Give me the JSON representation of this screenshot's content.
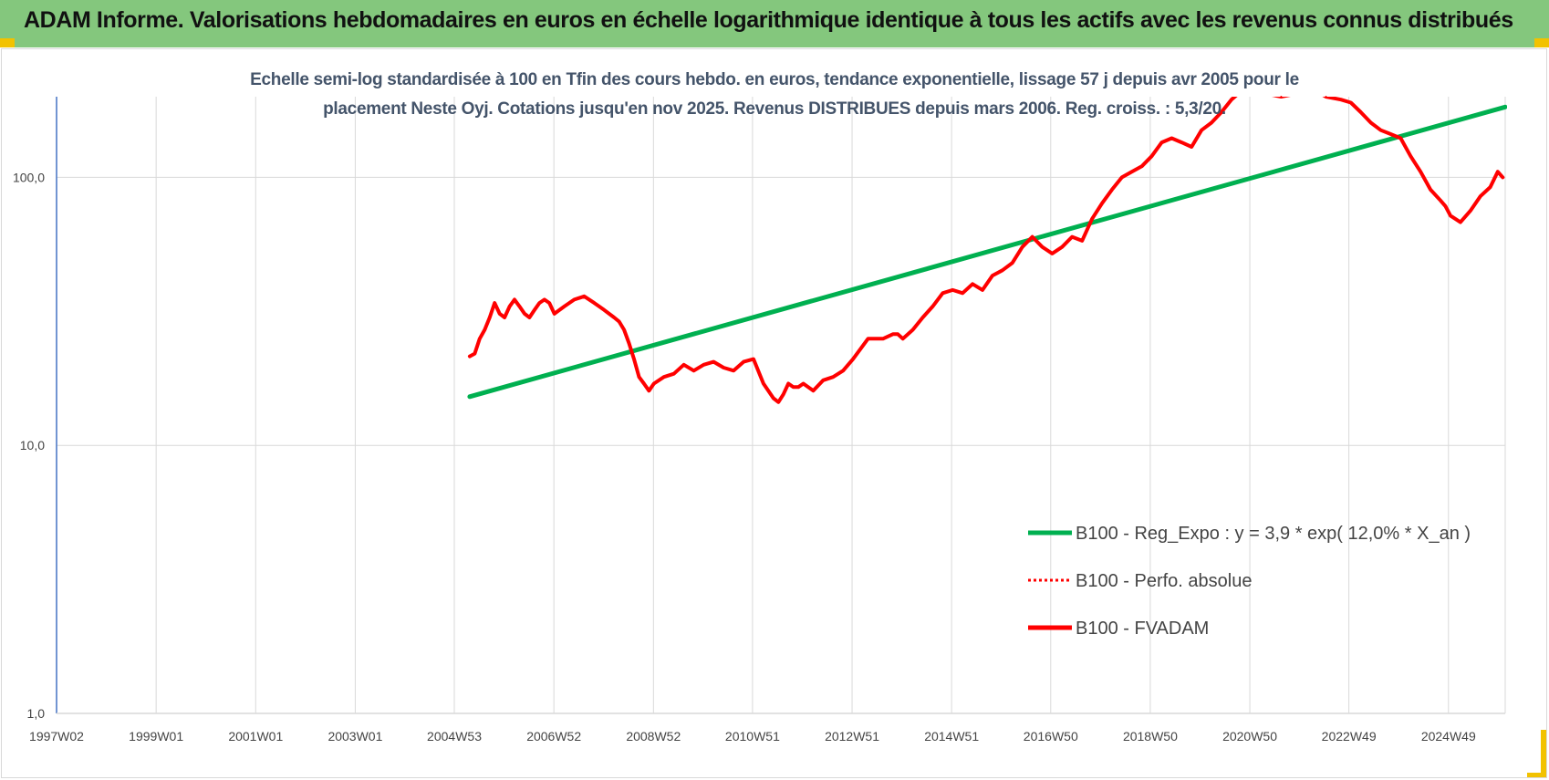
{
  "banner": {
    "title": "ADAM Informe. Valorisations hebdomadaires en euros en échelle logarithmique identique à tous les actifs avec les revenus connus distribués"
  },
  "colors": {
    "banner": "#84c77d",
    "trend": "#00b050",
    "series": "#ff0000",
    "grid": "#d9d9d9",
    "axis": "#4472c4",
    "corner": "#f2c200"
  },
  "chart_data": {
    "type": "line",
    "title_lines": [
      "Echelle semi-log standardisée à 100 en Tfin des cours hebdo. en euros, tendance exponentielle, lissage 57 j depuis avr 2005 pour le",
      "placement Neste Oyj. Cotations jusqu'en nov 2025. Revenus DISTRIBUES depuis mars 2006. Reg. croiss. : 5,3/20."
    ],
    "y_scale": "log",
    "ylim": [
      1,
      200
    ],
    "y_ticks": [
      {
        "value": 1,
        "label": "1,0"
      },
      {
        "value": 10,
        "label": "10,0"
      },
      {
        "value": 100,
        "label": "100,0"
      }
    ],
    "xlim": [
      1997.0,
      2026.1
    ],
    "x_ticks": [
      {
        "x": 1997.0,
        "label": "1997W02"
      },
      {
        "x": 1999.0,
        "label": "1999W01"
      },
      {
        "x": 2001.0,
        "label": "2001W01"
      },
      {
        "x": 2003.0,
        "label": "2003W01"
      },
      {
        "x": 2004.99,
        "label": "2004W53"
      },
      {
        "x": 2006.99,
        "label": "2006W52"
      },
      {
        "x": 2008.99,
        "label": "2008W52"
      },
      {
        "x": 2010.98,
        "label": "2010W51"
      },
      {
        "x": 2012.98,
        "label": "2012W51"
      },
      {
        "x": 2014.98,
        "label": "2014W51"
      },
      {
        "x": 2016.97,
        "label": "2016W50"
      },
      {
        "x": 2018.97,
        "label": "2018W50"
      },
      {
        "x": 2020.97,
        "label": "2020W50"
      },
      {
        "x": 2022.96,
        "label": "2022W49"
      },
      {
        "x": 2024.96,
        "label": "2024W49"
      }
    ],
    "legend_position": "bottom-right",
    "legend": [
      {
        "key": "trend",
        "label": "B100 - Reg_Expo : y = 3,9 * exp( 12,0% *  X_an )",
        "style": "solid"
      },
      {
        "key": "perfo",
        "label": "B100 - Perfo. absolue",
        "style": "dotted"
      },
      {
        "key": "fvadam",
        "label": "B100 - FVADAM",
        "style": "solid"
      }
    ],
    "series": [
      {
        "key": "trend",
        "type": "line",
        "x": [
          2005.3,
          2026.1
        ],
        "y": [
          15.2,
          183
        ]
      },
      {
        "key": "fvadam",
        "type": "line",
        "x": [
          2005.3,
          2005.4,
          2005.5,
          2005.6,
          2005.7,
          2005.8,
          2005.9,
          2006.0,
          2006.1,
          2006.2,
          2006.3,
          2006.4,
          2006.5,
          2006.6,
          2006.7,
          2006.8,
          2006.9,
          2007.0,
          2007.2,
          2007.4,
          2007.6,
          2007.8,
          2007.9,
          2008.0,
          2008.1,
          2008.2,
          2008.3,
          2008.4,
          2008.5,
          2008.6,
          2008.7,
          2008.8,
          2008.9,
          2009.0,
          2009.2,
          2009.4,
          2009.6,
          2009.8,
          2010.0,
          2010.2,
          2010.4,
          2010.6,
          2010.8,
          2011.0,
          2011.2,
          2011.4,
          2011.5,
          2011.6,
          2011.7,
          2011.8,
          2011.9,
          2012.0,
          2012.2,
          2012.4,
          2012.6,
          2012.8,
          2013.0,
          2013.3,
          2013.6,
          2013.8,
          2013.9,
          2014.0,
          2014.2,
          2014.4,
          2014.6,
          2014.8,
          2015.0,
          2015.2,
          2015.4,
          2015.6,
          2015.8,
          2016.0,
          2016.2,
          2016.4,
          2016.6,
          2016.8,
          2017.0,
          2017.2,
          2017.4,
          2017.6,
          2017.8,
          2018.0,
          2018.2,
          2018.4,
          2018.6,
          2018.8,
          2019.0,
          2019.2,
          2019.4,
          2019.6,
          2019.8,
          2020.0,
          2020.2,
          2020.4,
          2020.6,
          2020.8,
          2021.0,
          2021.3,
          2021.6,
          2021.9,
          2022.2,
          2022.5,
          2022.8,
          2023.0,
          2023.2,
          2023.4,
          2023.6,
          2023.8,
          2024.0,
          2024.2,
          2024.4,
          2024.6,
          2024.8,
          2024.9,
          2025.0,
          2025.2,
          2025.4,
          2025.6,
          2025.8,
          2025.95,
          2026.05
        ],
        "y": [
          21.5,
          22,
          25,
          27,
          30,
          34,
          31,
          30,
          33,
          35,
          33,
          31,
          30,
          32,
          34,
          35,
          34,
          31,
          33,
          35,
          36,
          34,
          33,
          32,
          31,
          30,
          29,
          27,
          24,
          21,
          18,
          17,
          16,
          17,
          18,
          18.5,
          20,
          19,
          20,
          20.5,
          19.5,
          19,
          20.5,
          21,
          17,
          15,
          14.5,
          15.5,
          17,
          16.5,
          16.5,
          17,
          16,
          17.5,
          18,
          19,
          21,
          25,
          25,
          26,
          26,
          25,
          27,
          30,
          33,
          37,
          38,
          37,
          40,
          38,
          43,
          45,
          48,
          55,
          60,
          55,
          52,
          55,
          60,
          58,
          70,
          80,
          90,
          100,
          105,
          110,
          120,
          135,
          140,
          135,
          130,
          150,
          160,
          175,
          195,
          210,
          215,
          205,
          200,
          205,
          215,
          200,
          195,
          190,
          175,
          160,
          150,
          145,
          140,
          120,
          105,
          90,
          82,
          78,
          72,
          68,
          75,
          85,
          92,
          105,
          100
        ]
      }
    ]
  }
}
